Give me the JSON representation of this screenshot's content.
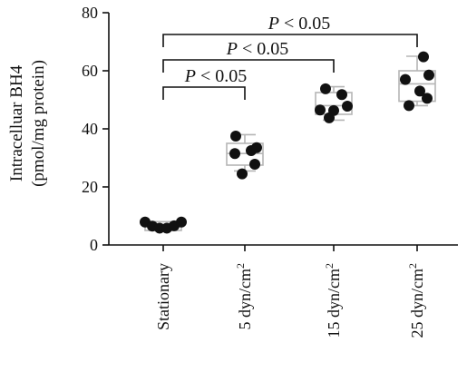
{
  "chart_data": {
    "type": "box-scatter",
    "ylabel_line1": "Intracelluar BH4",
    "ylabel_line2": "(pmol/mg protein)",
    "ylim": [
      0,
      80
    ],
    "yticks": [
      0,
      20,
      40,
      60,
      80
    ],
    "categories": [
      {
        "base": "Stationary",
        "sup": ""
      },
      {
        "base": "5 dyn/cm",
        "sup": "2"
      },
      {
        "base": "15 dyn/cm",
        "sup": "2"
      },
      {
        "base": "25 dyn/cm",
        "sup": "2"
      }
    ],
    "groups": [
      {
        "q1": 5.0,
        "median": 6.5,
        "q3": 8.0,
        "min": 5.0,
        "max": 8.0,
        "points": [
          7.9,
          6.5,
          5.8,
          5.8,
          6.6,
          7.9
        ]
      },
      {
        "q1": 27.5,
        "median": 31.5,
        "q3": 35.0,
        "min": 25.5,
        "max": 38.0,
        "points": [
          37.5,
          32.5,
          33.5,
          31.5,
          27.8,
          24.5
        ]
      },
      {
        "q1": 45.0,
        "median": 48.0,
        "q3": 52.5,
        "min": 43.0,
        "max": 54.5,
        "points": [
          53.8,
          51.8,
          47.8,
          46.5,
          46.3,
          43.8
        ]
      },
      {
        "q1": 49.5,
        "median": 55.5,
        "q3": 60.0,
        "min": 48.0,
        "max": 65.0,
        "points": [
          64.8,
          58.5,
          57.0,
          53.0,
          50.5,
          48.0
        ]
      }
    ],
    "significance": [
      {
        "from": 0,
        "to": 1,
        "label": "P < 0.05"
      },
      {
        "from": 0,
        "to": 2,
        "label": "P < 0.05"
      },
      {
        "from": 0,
        "to": 3,
        "label": "P < 0.05"
      }
    ],
    "colors": {
      "box": "#b5b5b5",
      "dot": "#111111",
      "axis": "#111111"
    }
  }
}
